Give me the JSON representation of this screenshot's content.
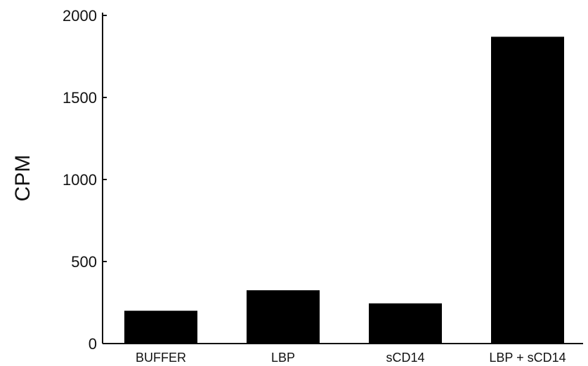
{
  "chart_data": {
    "type": "bar",
    "title": "",
    "xlabel": "",
    "ylabel": "CPM",
    "categories": [
      "BUFFER",
      "LBP",
      "sCD14",
      "LBP + sCD14"
    ],
    "values": [
      200,
      325,
      245,
      1870
    ],
    "ylim": [
      0,
      2000
    ],
    "yticks": [
      0,
      500,
      1000,
      1500,
      2000
    ],
    "grid": false,
    "legend": "none",
    "colors": {
      "bar": "#000000",
      "axis": "#111111"
    }
  }
}
